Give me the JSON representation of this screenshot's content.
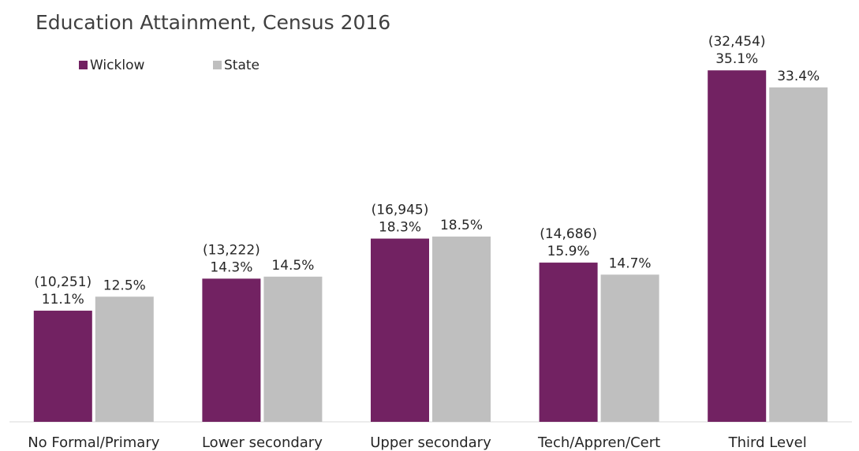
{
  "chart_data": {
    "type": "bar",
    "title": "Education Attainment, Census 2016",
    "categories": [
      "No Formal/Primary",
      "Lower secondary",
      "Upper secondary",
      "Tech/Appren/Cert",
      "Third Level"
    ],
    "series": [
      {
        "name": "Wicklow",
        "color": "#722262",
        "values": [
          11.1,
          14.3,
          18.3,
          15.9,
          35.1
        ],
        "value_labels": [
          "11.1%",
          "14.3%",
          "18.3%",
          "15.9%",
          "35.1%"
        ],
        "counts": [
          10251,
          13222,
          16945,
          14686,
          32454
        ],
        "count_labels": [
          "(10,251)",
          "(13,222)",
          "(16,945)",
          "(14,686)",
          "(32,454)"
        ]
      },
      {
        "name": "State",
        "color": "#bfbfbf",
        "values": [
          12.5,
          14.5,
          18.5,
          14.7,
          33.4
        ],
        "value_labels": [
          "12.5%",
          "14.5%",
          "18.5%",
          "14.7%",
          "33.4%"
        ]
      }
    ],
    "ylim": [
      0,
      40
    ],
    "legend": "top-left"
  }
}
